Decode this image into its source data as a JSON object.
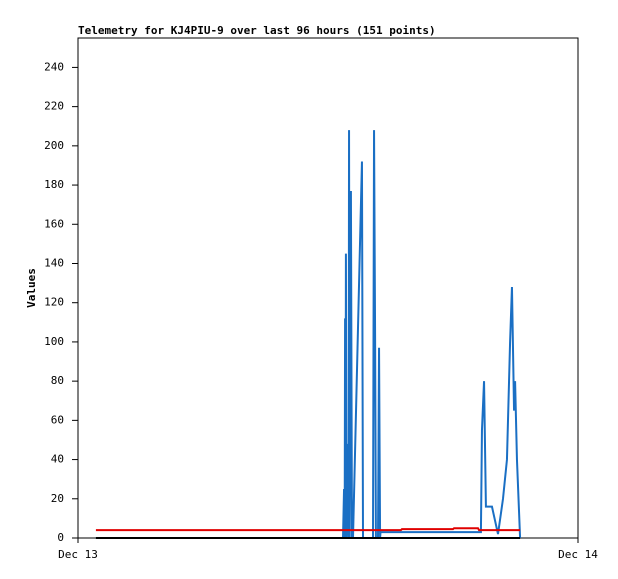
{
  "chart_data": {
    "type": "line",
    "title": "Telemetry for KJ4PIU-9 over last 96 hours (151 points)",
    "y_label": "Values",
    "xlim": [
      0,
      24
    ],
    "xticks": [
      {
        "value": 0,
        "label": "Dec 13"
      },
      {
        "value": 24,
        "label": "Dec 14"
      }
    ],
    "ylim": [
      0,
      255
    ],
    "yticks": [
      0,
      20,
      40,
      60,
      80,
      100,
      120,
      140,
      160,
      180,
      200,
      220,
      240
    ],
    "grid": false,
    "series": [
      {
        "color": "#000000",
        "x": [
          0.86,
          21.22
        ],
        "values": [
          0,
          0
        ]
      },
      {
        "color": "#e00000",
        "x": [
          0.86,
          15.5,
          15.55,
          18.0,
          18.05,
          19.2,
          19.25,
          21.22
        ],
        "values": [
          4,
          4,
          4.5,
          4.5,
          5,
          5,
          4,
          4
        ]
      },
      {
        "color": "#1a6fc4",
        "x": [
          0.86,
          12.72,
          12.77,
          12.8,
          12.82,
          12.84,
          12.86,
          12.89,
          12.96,
          12.99,
          13.01,
          13.04,
          13.1,
          13.15,
          13.2,
          13.63,
          13.68,
          13.73,
          14.16,
          14.21,
          14.26,
          14.3,
          14.4,
          14.45,
          14.5,
          14.52,
          19.34,
          19.39,
          19.49,
          19.58,
          19.87,
          20.16,
          20.4,
          20.59,
          20.74,
          20.83,
          20.93,
          20.98,
          21.07,
          21.22
        ],
        "values": [
          0,
          0,
          25,
          0,
          112,
          0,
          145,
          0,
          48,
          0,
          208,
          0,
          177,
          0,
          0,
          192,
          0,
          0,
          0,
          208,
          104,
          0,
          0,
          97,
          0,
          3,
          3,
          55,
          80,
          16,
          16,
          2,
          20,
          40,
          100,
          128,
          65,
          80,
          40,
          0
        ]
      }
    ]
  }
}
